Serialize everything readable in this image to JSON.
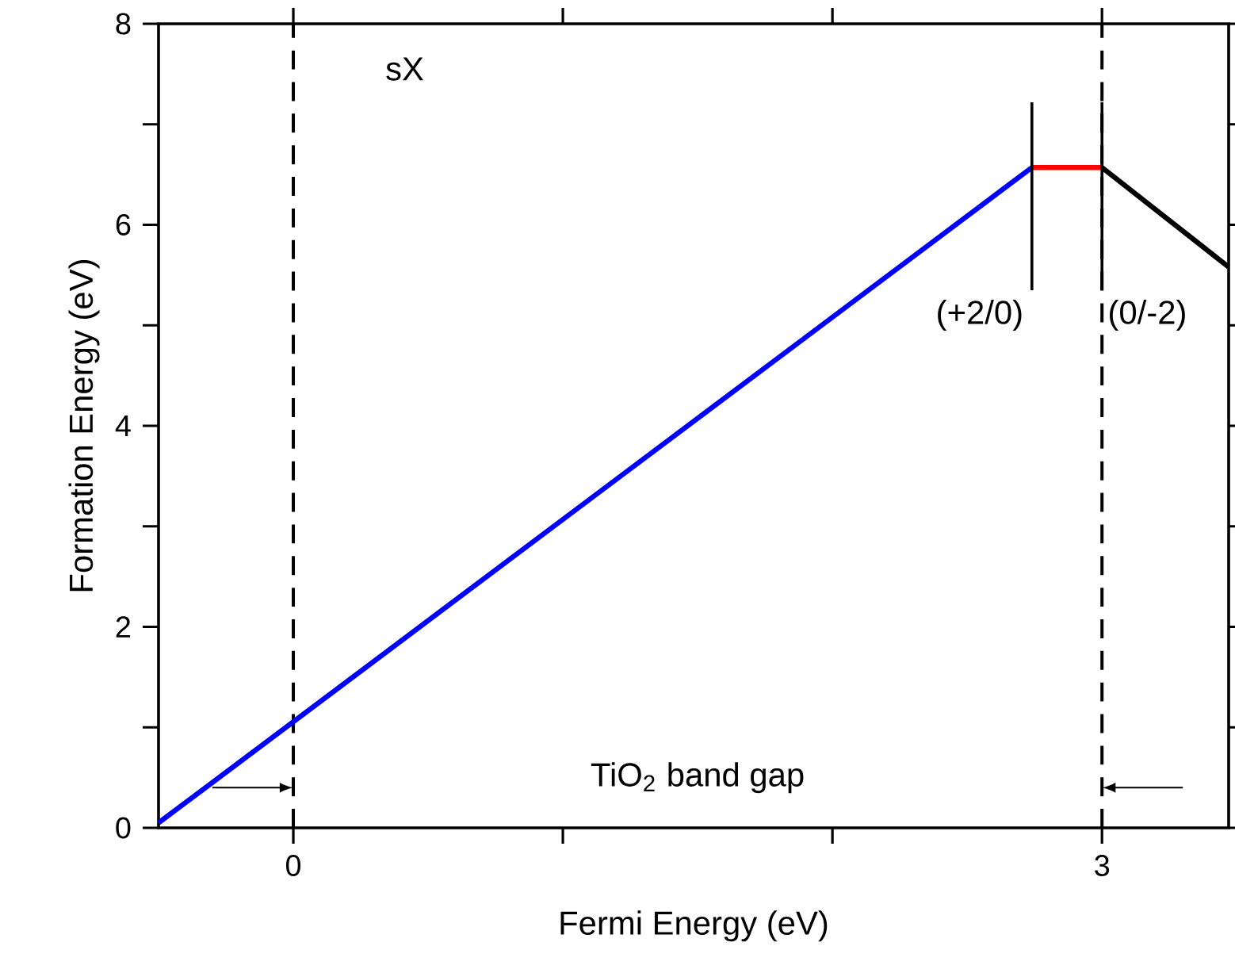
{
  "chart_data": {
    "type": "line",
    "xlabel": "Fermi Energy (eV)",
    "ylabel": "Formation Energy (eV)",
    "xlim": [
      -0.5,
      3.47
    ],
    "ylim": [
      0,
      8
    ],
    "xticks": [
      0,
      {
        "value": 1,
        "label": null
      },
      {
        "value": 2,
        "label": null
      },
      3
    ],
    "yticks": [
      0,
      {
        "value": 1,
        "label": null
      },
      2,
      {
        "value": 3,
        "label": null
      },
      4,
      {
        "value": 5,
        "label": null
      },
      6,
      {
        "value": 7,
        "label": null
      },
      8
    ],
    "grid": false,
    "marker": "none",
    "line_style": "solid",
    "series": [
      {
        "color": "#0000ff",
        "x": [
          -0.5,
          2.74
        ],
        "values": [
          0.05,
          6.57
        ]
      },
      {
        "color": "#ff0000",
        "x": [
          2.74,
          3.0
        ],
        "values": [
          6.57,
          6.57
        ]
      },
      {
        "color": "#000000",
        "x": [
          3.0,
          3.47
        ],
        "values": [
          6.57,
          5.58
        ]
      },
      {
        "color": "#000000",
        "x": [
          2.74,
          2.74
        ],
        "values": [
          7.22,
          5.35
        ]
      },
      {
        "color": "#000000",
        "x": [
          3.0,
          3.0
        ],
        "values": [
          7.22,
          5.35
        ]
      }
    ],
    "ref_lines": [
      {
        "axis": "x",
        "value": 0,
        "color": "#000000",
        "line_style": "dashed"
      },
      {
        "axis": "x",
        "value": 3,
        "color": "#000000",
        "line_style": "dashed"
      }
    ],
    "annotations": [
      "sX",
      "TiO$_{2}$ band gap",
      "(+2/0)",
      "(0/-2)"
    ]
  }
}
